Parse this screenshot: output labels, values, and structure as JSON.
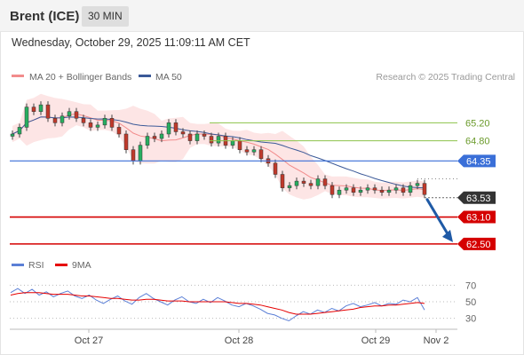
{
  "header": {
    "title": "Brent (ICE)",
    "timeframe": "30 MIN"
  },
  "datetime": "Wednesday, October 29, 2025 11:09:11 AM CET",
  "legend": {
    "items": [
      {
        "label": "MA 20 + Bollinger Bands",
        "color": "#f28c8c"
      },
      {
        "label": "MA 50",
        "color": "#3b5998"
      }
    ],
    "credit": "Research © 2025 Trading Central"
  },
  "rsi_legend": {
    "items": [
      {
        "label": "RSI",
        "color": "#5b7fd6"
      },
      {
        "label": "9MA",
        "color": "#e60000"
      }
    ]
  },
  "colors": {
    "resistance": "#8bc34a",
    "pivot": "#3a6fd8",
    "support": "#d50000",
    "current": "#333333",
    "arrow": "#1f5aa6",
    "band_fill": "#fde5e5",
    "up_candle": "#27ae60",
    "down_candle": "#c0392b"
  },
  "chart_data": {
    "type": "line",
    "x_ticks": [
      "Oct 27",
      "Oct 28",
      "Oct 29",
      "Nov 2"
    ],
    "ylim": [
      62.3,
      65.8
    ],
    "price_series_sketch": [
      64.95,
      65.1,
      65.55,
      65.45,
      65.6,
      65.3,
      65.2,
      65.35,
      65.45,
      65.3,
      65.2,
      65.1,
      65.15,
      65.3,
      65.1,
      64.95,
      64.6,
      64.35,
      64.7,
      64.9,
      64.85,
      64.95,
      65.2,
      65.0,
      64.95,
      64.8,
      64.95,
      64.9,
      64.75,
      64.9,
      64.7,
      64.8,
      64.6,
      64.55,
      64.6,
      64.4,
      64.3,
      64.05,
      63.75,
      63.8,
      63.9,
      63.85,
      63.8,
      63.95,
      63.8,
      63.6,
      63.7,
      63.75,
      63.65,
      63.7,
      63.75,
      63.7,
      63.65,
      63.7,
      63.75,
      63.65,
      63.8,
      63.85,
      63.6
    ],
    "levels": [
      {
        "value": 65.2,
        "label": "65.20",
        "kind": "resistance"
      },
      {
        "value": 64.8,
        "label": "64.80",
        "kind": "resistance"
      },
      {
        "value": 64.35,
        "label": "64.35",
        "kind": "pivot"
      },
      {
        "value": 63.53,
        "label": "63.53",
        "kind": "current"
      },
      {
        "value": 63.1,
        "label": "63.10",
        "kind": "support"
      },
      {
        "value": 62.5,
        "label": "62.50",
        "kind": "support"
      }
    ],
    "arrow": {
      "from": 63.53,
      "to": 62.5
    },
    "rsi": {
      "ylim": [
        20,
        80
      ],
      "ticks": [
        70,
        50,
        30
      ],
      "rsi_series_sketch": [
        61,
        66,
        60,
        65,
        58,
        62,
        56,
        60,
        63,
        57,
        54,
        58,
        52,
        48,
        53,
        57,
        51,
        47,
        55,
        60,
        54,
        50,
        46,
        52,
        56,
        50,
        48,
        53,
        49,
        55,
        51,
        46,
        44,
        48,
        45,
        41,
        36,
        34,
        30,
        27,
        33,
        38,
        35,
        40,
        37,
        42,
        39,
        45,
        48,
        44,
        46,
        49,
        45,
        48,
        47,
        52,
        50,
        55,
        40
      ],
      "ma_series_sketch": [
        58,
        60,
        61,
        61,
        61,
        60,
        59,
        59,
        59,
        58,
        57,
        57,
        56,
        55,
        54,
        54,
        53,
        52,
        52,
        53,
        53,
        52,
        51,
        51,
        51,
        50,
        50,
        50,
        50,
        50,
        50,
        49,
        48,
        48,
        47,
        46,
        44,
        42,
        40,
        37,
        35,
        35,
        35,
        36,
        37,
        38,
        39,
        40,
        41,
        43,
        44,
        45,
        45,
        46,
        46,
        47,
        48,
        49,
        48
      ]
    }
  }
}
